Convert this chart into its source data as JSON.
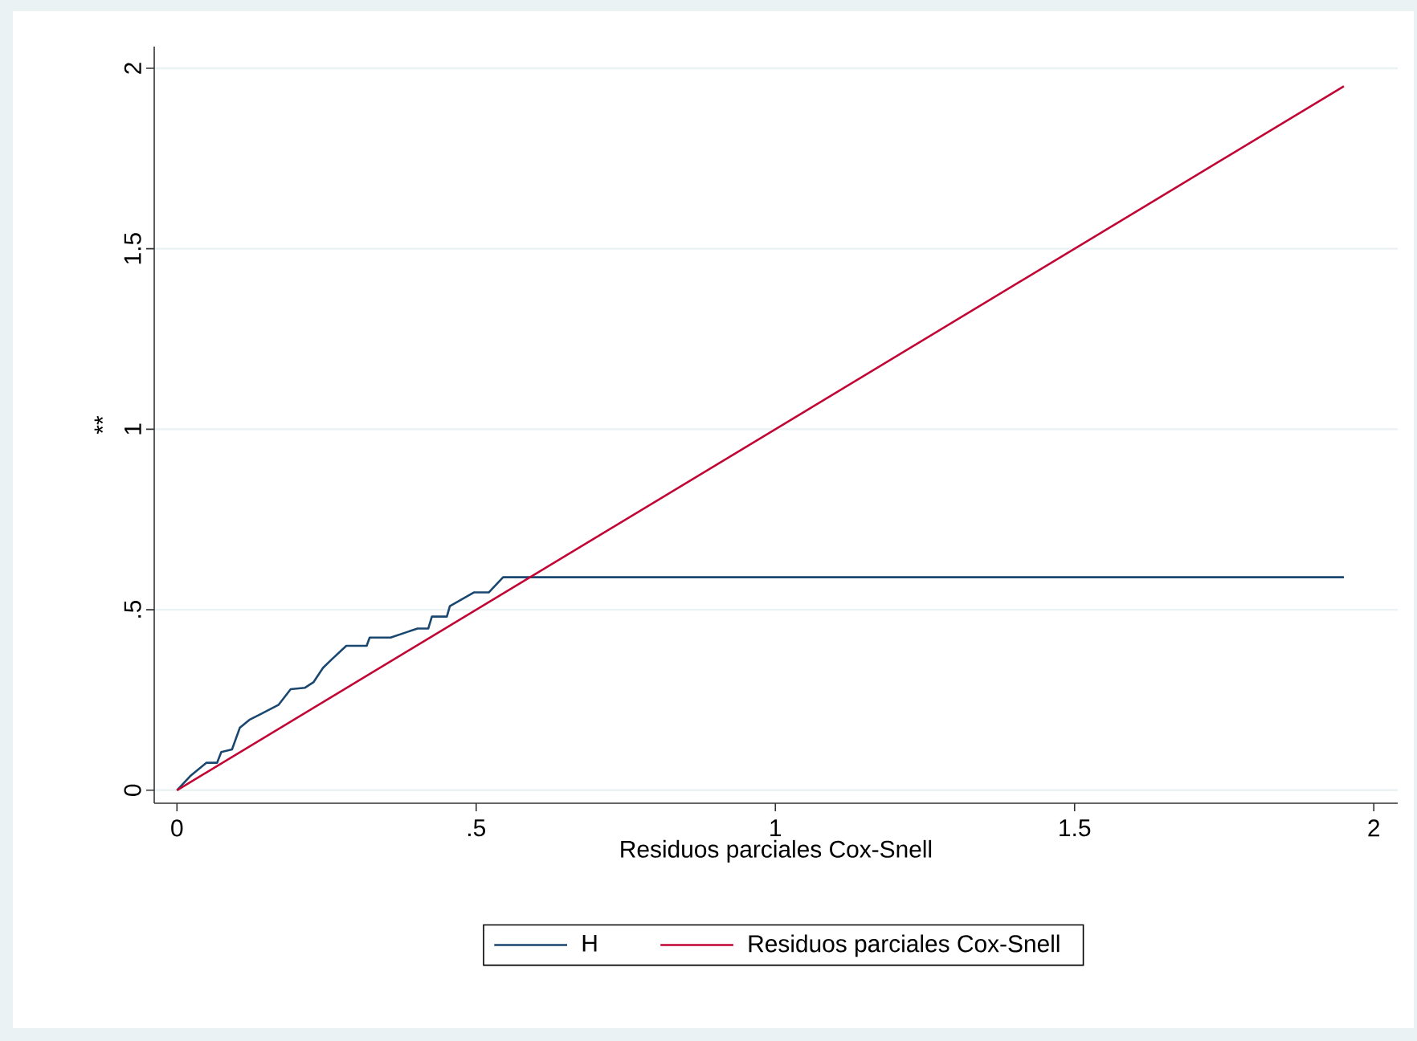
{
  "chart_data": {
    "type": "line",
    "xlabel": "Residuos parciales Cox-Snell",
    "ylabel": "**",
    "series": [
      {
        "name": "H",
        "color": "#1a476f",
        "x": [
          0,
          0.022,
          0.049,
          0.067,
          0.074,
          0.092,
          0.105,
          0.121,
          0.139,
          0.17,
          0.19,
          0.214,
          0.228,
          0.244,
          0.259,
          0.283,
          0.317,
          0.322,
          0.357,
          0.402,
          0.42,
          0.426,
          0.451,
          0.456,
          0.496,
          0.521,
          0.545,
          1.95
        ],
        "values": [
          0,
          0.039,
          0.076,
          0.076,
          0.106,
          0.113,
          0.173,
          0.195,
          0.21,
          0.237,
          0.28,
          0.284,
          0.299,
          0.339,
          0.363,
          0.4,
          0.4,
          0.423,
          0.423,
          0.448,
          0.448,
          0.481,
          0.481,
          0.51,
          0.548,
          0.548,
          0.59,
          0.59
        ]
      },
      {
        "name": "Residuos parciales Cox-Snell",
        "color": "#c10534",
        "x": [
          0,
          1.95
        ],
        "values": [
          0,
          1.95
        ]
      }
    ],
    "xlim": [
      -0.038,
      2.04
    ],
    "ylim": [
      -0.036,
      2.06
    ],
    "xticks": [
      0,
      {
        "value": 0.5,
        "label": ".5"
      },
      1,
      {
        "value": 1.5,
        "label": "1.5"
      },
      2
    ],
    "yticks": [
      0,
      {
        "value": 0.5,
        "label": ".5"
      },
      1,
      {
        "value": 1.5,
        "label": "1.5"
      },
      2
    ],
    "grid": "y",
    "legend": "bottom",
    "marker": "none",
    "line_style": "solid"
  }
}
